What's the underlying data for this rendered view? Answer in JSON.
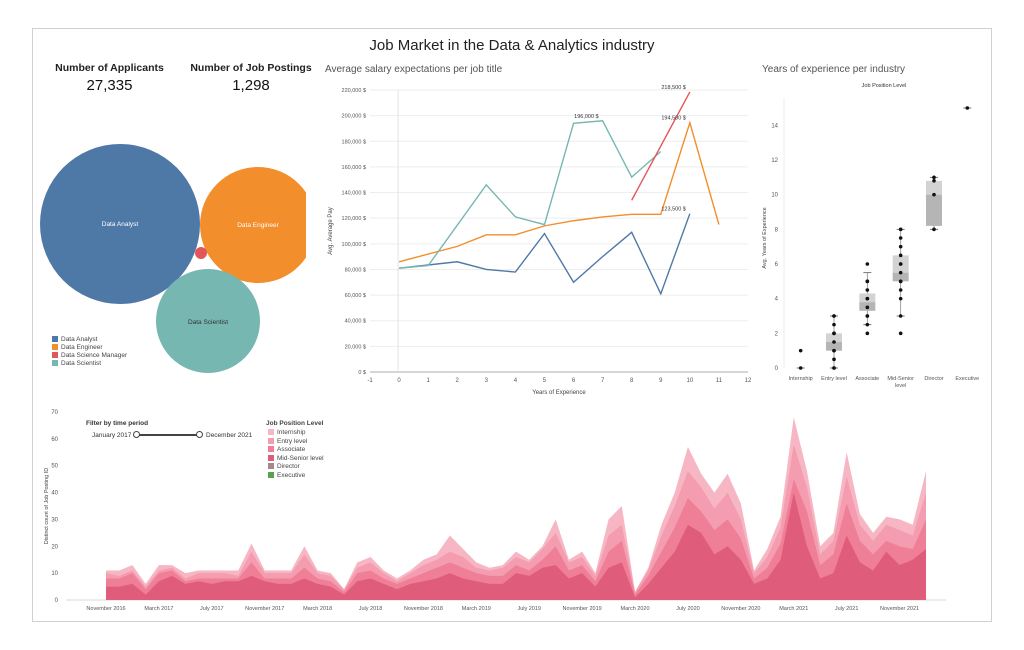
{
  "title": "Job Market in the Data & Analytics industry",
  "kpis": {
    "applicants_label": "Number of Applicants",
    "applicants_value": "27,335",
    "postings_label": "Number of Job Postings",
    "postings_value": "1,298"
  },
  "colors": {
    "analyst": "#4e79a7",
    "engineer": "#f28e2b",
    "manager": "#e15759",
    "scientist": "#76b7b2",
    "internship": "#f7b6c3",
    "entry": "#f49db0",
    "associate": "#ef7f96",
    "midsenior": "#e05c7b",
    "director": "#a5888b",
    "executive": "#59a14f"
  },
  "bubble_chart": {
    "legend": [
      {
        "label": "Data Analyst",
        "color": "#4e79a7"
      },
      {
        "label": "Data Engineer",
        "color": "#f28e2b"
      },
      {
        "label": "Data Science Manager",
        "color": "#e15759"
      },
      {
        "label": "Data Scientist",
        "color": "#76b7b2"
      }
    ],
    "labels": {
      "analyst": "Data Analyst",
      "engineer": "Data Engineer",
      "scientist": "Data Scientist"
    }
  },
  "chart_data": [
    {
      "type": "bubble",
      "series": [
        {
          "name": "Data Analyst",
          "value": 100
        },
        {
          "name": "Data Engineer",
          "value": 52
        },
        {
          "name": "Data Scientist",
          "value": 43
        },
        {
          "name": "Data Science Manager",
          "value": 1
        }
      ]
    },
    {
      "type": "line",
      "title": "Average salary expectations per job title",
      "xlabel": "Years of Experience",
      "ylabel": "Avg. Average Pay",
      "xlim": [
        -1,
        12
      ],
      "ylim": [
        0,
        220000
      ],
      "xticks": [
        -1,
        0,
        1,
        2,
        3,
        4,
        5,
        6,
        7,
        8,
        9,
        10,
        11,
        12
      ],
      "yticks": [
        0,
        20000,
        40000,
        60000,
        80000,
        100000,
        120000,
        140000,
        160000,
        180000,
        200000,
        220000
      ],
      "ytick_labels": [
        "0 $",
        "20,000 $",
        "40,000 $",
        "60,000 $",
        "80,000 $",
        "100,000 $",
        "120,000 $",
        "140,000 $",
        "160,000 $",
        "180,000 $",
        "200,000 $",
        "220,000 $"
      ],
      "series": [
        {
          "color": "#4e79a7",
          "points": [
            [
              0,
              81000
            ],
            [
              2,
              86000
            ],
            [
              3,
              80000
            ],
            [
              4,
              78000
            ],
            [
              5,
              108000
            ],
            [
              6,
              70000
            ],
            [
              7,
              90000
            ],
            [
              8,
              109000
            ],
            [
              9,
              61000
            ],
            [
              10,
              123500
            ]
          ]
        },
        {
          "color": "#f28e2b",
          "points": [
            [
              0,
              86000
            ],
            [
              2,
              98000
            ],
            [
              3,
              107000
            ],
            [
              4,
              107000
            ],
            [
              5,
              114000
            ],
            [
              6,
              118000
            ],
            [
              7,
              121000
            ],
            [
              8,
              123000
            ],
            [
              9,
              123000
            ],
            [
              10,
              194500
            ],
            [
              11,
              115000
            ]
          ]
        },
        {
          "color": "#76b7b2",
          "points": [
            [
              0,
              81000
            ],
            [
              1,
              83000
            ],
            [
              3,
              146000
            ],
            [
              4,
              121000
            ],
            [
              5,
              115000
            ],
            [
              6,
              194000
            ],
            [
              7,
              196000
            ],
            [
              8,
              152000
            ],
            [
              9,
              172000
            ]
          ]
        },
        {
          "color": "#e15759",
          "points": [
            [
              8,
              134000
            ],
            [
              10,
              218500
            ]
          ]
        }
      ],
      "annotations": [
        {
          "x": 7,
          "y": 196000,
          "label": "196,000 $"
        },
        {
          "x": 10,
          "y": 218500,
          "label": "218,500 $"
        },
        {
          "x": 10,
          "y": 194500,
          "label": "194,500 $"
        },
        {
          "x": 10,
          "y": 123500,
          "label": "123,500 $"
        }
      ]
    },
    {
      "type": "boxplot",
      "title": "Years of experience per industry",
      "legend_title": "Job Position Level",
      "ylabel": "Avg. Years of Experience",
      "ylim": [
        0,
        15
      ],
      "yticks": [
        0,
        2,
        4,
        6,
        8,
        10,
        12,
        14
      ],
      "categories": [
        "Internship",
        "Entry level",
        "Associate",
        "Mid-Senior level",
        "Director",
        "Executive"
      ],
      "category_lines": [
        [
          "Internship"
        ],
        [
          "Entry level"
        ],
        [
          "Associate"
        ],
        [
          "Mid-Senior",
          "level"
        ],
        [
          "Director"
        ],
        [
          "Executive"
        ]
      ],
      "boxes": [
        {
          "min": 0,
          "q1": 0,
          "median": 0,
          "q3": 0,
          "max": 0,
          "points": [
            0,
            1
          ]
        },
        {
          "min": 0,
          "q1": 1,
          "median": 1.5,
          "q3": 2,
          "max": 3,
          "points": [
            0,
            0,
            0.5,
            1,
            1,
            1.5,
            2,
            2,
            2.5,
            3,
            3
          ]
        },
        {
          "min": 2.5,
          "q1": 3.3,
          "median": 3.8,
          "q3": 4.3,
          "max": 5.5,
          "points": [
            2,
            2.5,
            3,
            3,
            3.5,
            4,
            4,
            4.5,
            5,
            5,
            6
          ]
        },
        {
          "min": 3,
          "q1": 5,
          "median": 5.5,
          "q3": 6.5,
          "max": 8,
          "points": [
            2,
            3,
            4,
            4.5,
            5,
            5,
            5.5,
            6,
            6,
            6.5,
            7,
            7.5,
            8
          ]
        },
        {
          "min": 8,
          "q1": 8.2,
          "median": 10,
          "q3": 10.8,
          "max": 11,
          "points": [
            8,
            10,
            10.8,
            11
          ]
        },
        {
          "min": 15,
          "q1": 15,
          "median": 15,
          "q3": 15,
          "max": 15,
          "points": [
            15
          ]
        }
      ]
    },
    {
      "type": "area",
      "ylabel": "Distinct count of Job Posting ID",
      "ylim": [
        0,
        70
      ],
      "yticks": [
        0,
        10,
        20,
        30,
        40,
        50,
        60,
        70
      ],
      "xlabels": [
        "November 2016",
        "March 2017",
        "July 2017",
        "November 2017",
        "March 2018",
        "July 2018",
        "November 2018",
        "March 2019",
        "July 2019",
        "November 2019",
        "March 2020",
        "July 2020",
        "November 2020",
        "March 2021",
        "July 2021",
        "November 2021"
      ],
      "x_index_of_labels": [
        0,
        4,
        8,
        12,
        16,
        20,
        24,
        28,
        32,
        36,
        40,
        44,
        48,
        52,
        56,
        60
      ],
      "series": [
        {
          "name": "Internship",
          "color": "#f7b6c3",
          "values": [
            11,
            11,
            13,
            6,
            13,
            13,
            10,
            11,
            11,
            11,
            11,
            21,
            11,
            11,
            11,
            20,
            11,
            10,
            4,
            14,
            16,
            11,
            8,
            11,
            15,
            17,
            24,
            19,
            14,
            12,
            13,
            18,
            15,
            20,
            30,
            15,
            18,
            10,
            30,
            35,
            3,
            12,
            28,
            40,
            57,
            47,
            40,
            47,
            36,
            11,
            19,
            31,
            68,
            48,
            20,
            25,
            55,
            32,
            25,
            31,
            30,
            28,
            48
          ]
        },
        {
          "name": "Entry level",
          "color": "#f49db0",
          "values": [
            10,
            9,
            11,
            5,
            11,
            12,
            8,
            10,
            10,
            10,
            9,
            18,
            10,
            10,
            10,
            17,
            10,
            9,
            4,
            12,
            14,
            10,
            7,
            10,
            13,
            15,
            18,
            16,
            12,
            11,
            12,
            16,
            14,
            19,
            25,
            14,
            16,
            9,
            24,
            28,
            3,
            11,
            24,
            35,
            48,
            42,
            34,
            40,
            30,
            10,
            16,
            27,
            58,
            42,
            17,
            22,
            46,
            28,
            22,
            28,
            26,
            24,
            40
          ]
        },
        {
          "name": "Associate",
          "color": "#ef7f96",
          "values": [
            8,
            8,
            10,
            4,
            10,
            11,
            7,
            8,
            8,
            8,
            8,
            14,
            8,
            8,
            8,
            12,
            8,
            7,
            3,
            10,
            11,
            8,
            6,
            8,
            10,
            12,
            14,
            12,
            10,
            9,
            9,
            13,
            11,
            15,
            20,
            11,
            13,
            7,
            18,
            22,
            2,
            9,
            18,
            27,
            38,
            33,
            26,
            30,
            23,
            8,
            12,
            21,
            45,
            33,
            13,
            17,
            36,
            22,
            17,
            22,
            20,
            19,
            30
          ]
        },
        {
          "name": "Mid-Senior level",
          "color": "#e05c7b",
          "values": [
            5,
            5,
            6,
            2,
            7,
            9,
            6,
            7,
            6,
            7,
            7,
            9,
            7,
            6,
            6,
            8,
            6,
            5,
            2,
            7,
            8,
            6,
            4,
            6,
            7,
            8,
            10,
            8,
            7,
            6,
            6,
            10,
            9,
            12,
            13,
            8,
            10,
            5,
            12,
            14,
            1,
            6,
            12,
            18,
            28,
            25,
            17,
            20,
            15,
            6,
            8,
            15,
            40,
            20,
            8,
            10,
            24,
            14,
            11,
            18,
            13,
            15,
            19
          ]
        },
        {
          "name": "Director",
          "color": "#a5888b",
          "values": [
            0,
            0,
            0,
            0,
            0,
            0,
            0,
            0,
            0,
            0,
            0,
            0,
            0,
            0,
            0,
            0,
            0,
            0,
            0,
            0,
            0,
            0,
            0,
            0,
            0,
            0,
            0,
            0,
            0,
            0,
            0,
            0,
            0,
            0,
            0,
            0,
            0,
            0,
            0,
            0,
            0,
            0,
            0,
            0,
            0,
            0,
            0,
            0,
            0,
            0,
            0,
            0,
            0,
            0,
            0,
            0,
            0,
            0,
            0,
            0,
            0,
            0,
            0
          ]
        },
        {
          "name": "Executive",
          "color": "#59a14f",
          "values": [
            0,
            0,
            0,
            0,
            0,
            0,
            0,
            0,
            0,
            0,
            0,
            0,
            0,
            0,
            0,
            0,
            0,
            0,
            0,
            0,
            0,
            0,
            0,
            0,
            0,
            0,
            0,
            0,
            0,
            0,
            0,
            0,
            0,
            0,
            0,
            0,
            0,
            0,
            0,
            0,
            0,
            0,
            0,
            0,
            0,
            0,
            0,
            0,
            0,
            0,
            0,
            0,
            0,
            0,
            0,
            0,
            0,
            0,
            0,
            0,
            0,
            0,
            0
          ]
        }
      ]
    }
  ],
  "area_legend": {
    "title": "Job Position Level",
    "items": [
      {
        "label": "Internship",
        "color": "#f7b6c3"
      },
      {
        "label": "Entry level",
        "color": "#f49db0"
      },
      {
        "label": "Associate",
        "color": "#ef7f96"
      },
      {
        "label": "Mid-Senior level",
        "color": "#e05c7b"
      },
      {
        "label": "Director",
        "color": "#a5888b"
      },
      {
        "label": "Executive",
        "color": "#59a14f"
      }
    ]
  },
  "filter": {
    "label": "Filter by time period",
    "start": "January 2017",
    "end": "December 2021"
  }
}
